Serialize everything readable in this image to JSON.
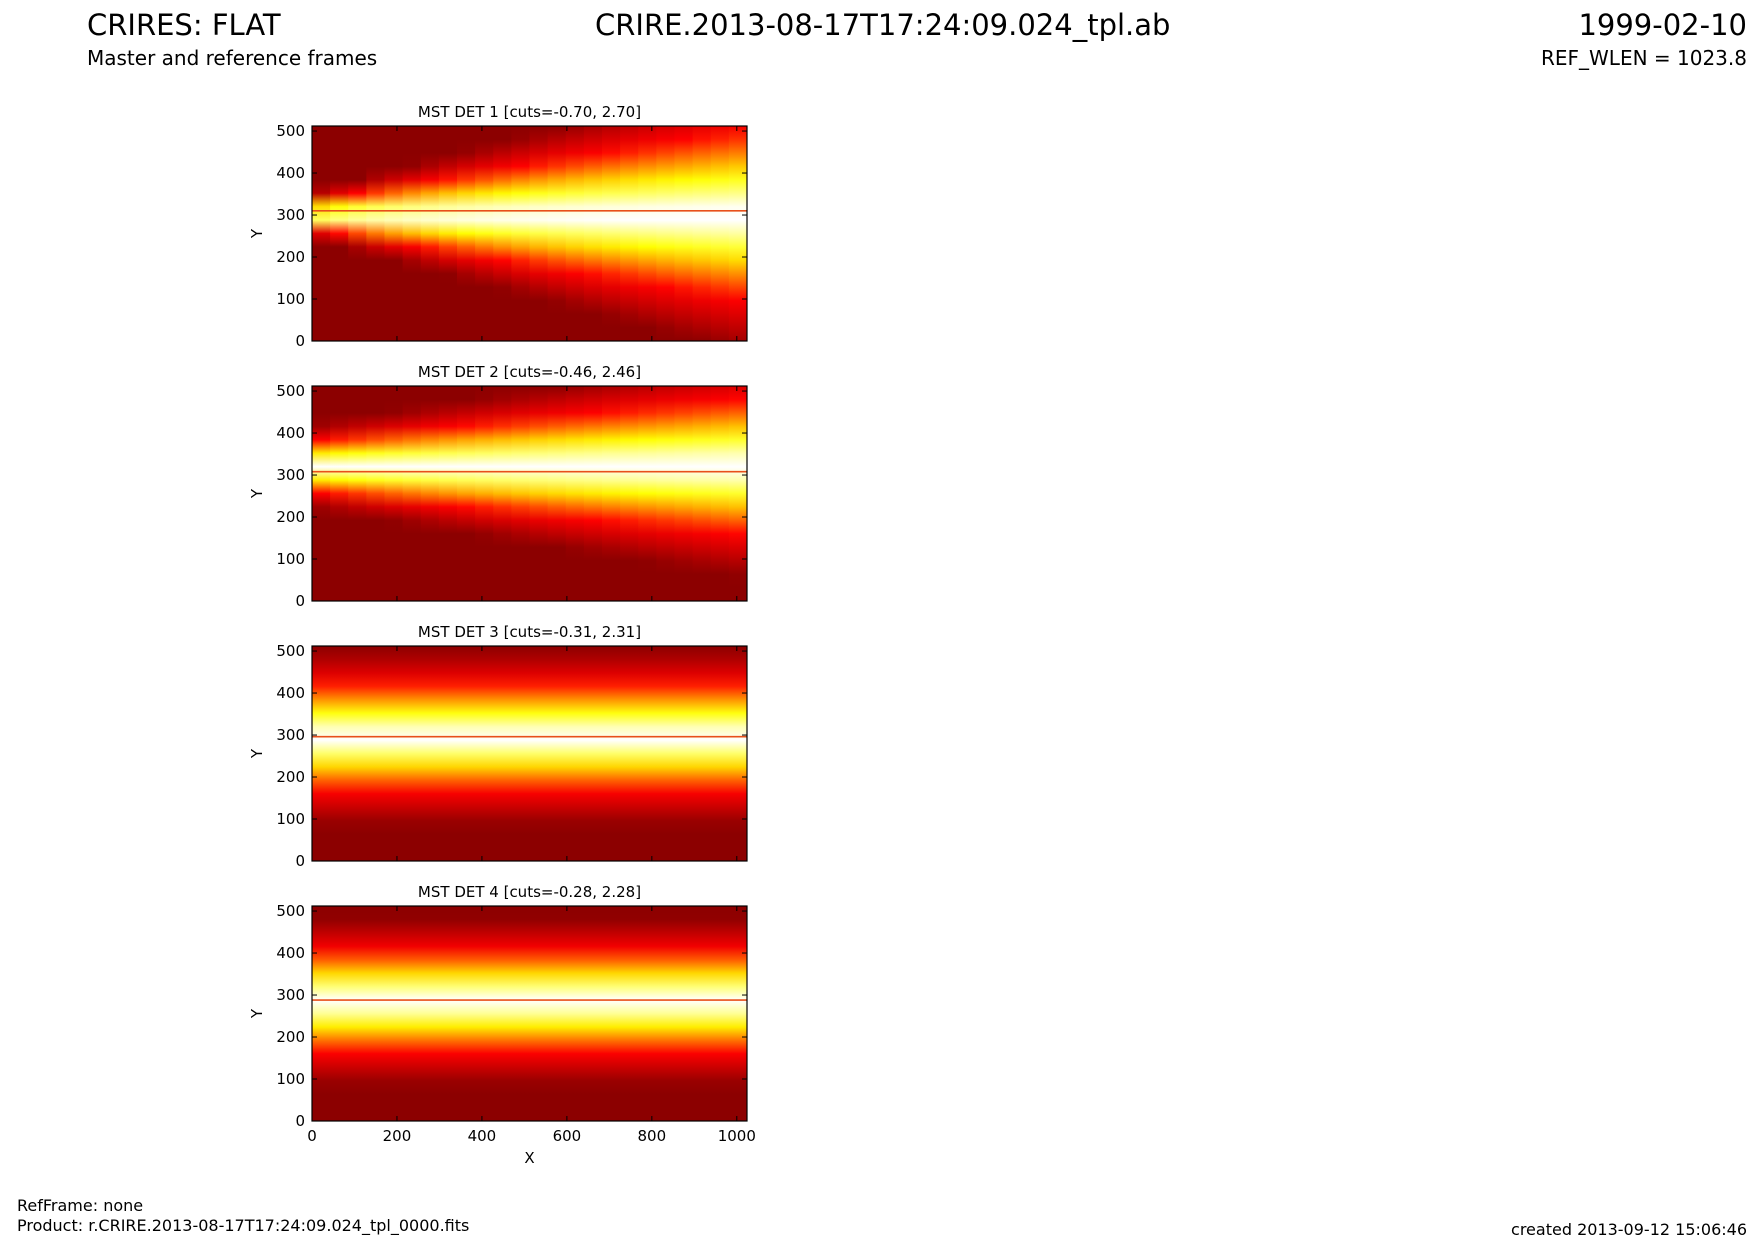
{
  "header": {
    "title": "CRIRES: FLAT",
    "subtitle": "Master and reference frames",
    "product_id": "CRIRE.2013-08-17T17:24:09.024_tpl.ab",
    "date": "1999-02-10",
    "ref_wlen": "REF_WLEN = 1023.8"
  },
  "footer": {
    "refframe": "RefFrame: none",
    "product": "Product: r.CRIRE.2013-08-17T17:24:09.024_tpl_0000.fits",
    "created": "created 2013-09-12 15:06:46"
  },
  "chart_data": [
    {
      "type": "heatmap",
      "title": "MST DET 1 [cuts=-0.70, 2.70]",
      "xlabel": "",
      "ylabel": "Y",
      "xlim": [
        0,
        1024
      ],
      "ylim": [
        0,
        512
      ],
      "yticks": [
        0,
        100,
        200,
        300,
        400,
        500
      ],
      "xticks": [
        0,
        200,
        400,
        600,
        800,
        1000
      ],
      "show_xtick_labels": false,
      "colormap": "hot",
      "band": {
        "center_y": 300,
        "half_width_left": 25,
        "half_width_right": 150
      },
      "line_y": 310
    },
    {
      "type": "heatmap",
      "title": "MST DET 2 [cuts=-0.46, 2.46]",
      "xlabel": "",
      "ylabel": "Y",
      "xlim": [
        0,
        1024
      ],
      "ylim": [
        0,
        512
      ],
      "yticks": [
        0,
        100,
        200,
        300,
        400,
        500
      ],
      "xticks": [
        0,
        200,
        400,
        600,
        800,
        1000
      ],
      "show_xtick_labels": false,
      "colormap": "hot",
      "band": {
        "center_y": 320,
        "half_width_left": 45,
        "half_width_right": 120
      },
      "line_y": 308
    },
    {
      "type": "heatmap",
      "title": "MST DET 3 [cuts=-0.31, 2.31]",
      "xlabel": "",
      "ylabel": "Y",
      "xlim": [
        0,
        1024
      ],
      "ylim": [
        0,
        512
      ],
      "yticks": [
        0,
        100,
        200,
        300,
        400,
        500
      ],
      "xticks": [
        0,
        200,
        400,
        600,
        800,
        1000
      ],
      "show_xtick_labels": false,
      "colormap": "hot",
      "band": {
        "center_y": 295,
        "half_width_left": 95,
        "half_width_right": 95
      },
      "line_y": 296
    },
    {
      "type": "heatmap",
      "title": "MST DET 4 [cuts=-0.28, 2.28]",
      "xlabel": "X",
      "ylabel": "Y",
      "xlim": [
        0,
        1024
      ],
      "ylim": [
        0,
        512
      ],
      "yticks": [
        0,
        100,
        200,
        300,
        400,
        500
      ],
      "xticks": [
        0,
        200,
        400,
        600,
        800,
        1000
      ],
      "show_xtick_labels": true,
      "colormap": "hot",
      "band": {
        "center_y": 285,
        "half_width_left": 90,
        "half_width_right": 90
      },
      "line_y": 288
    }
  ]
}
